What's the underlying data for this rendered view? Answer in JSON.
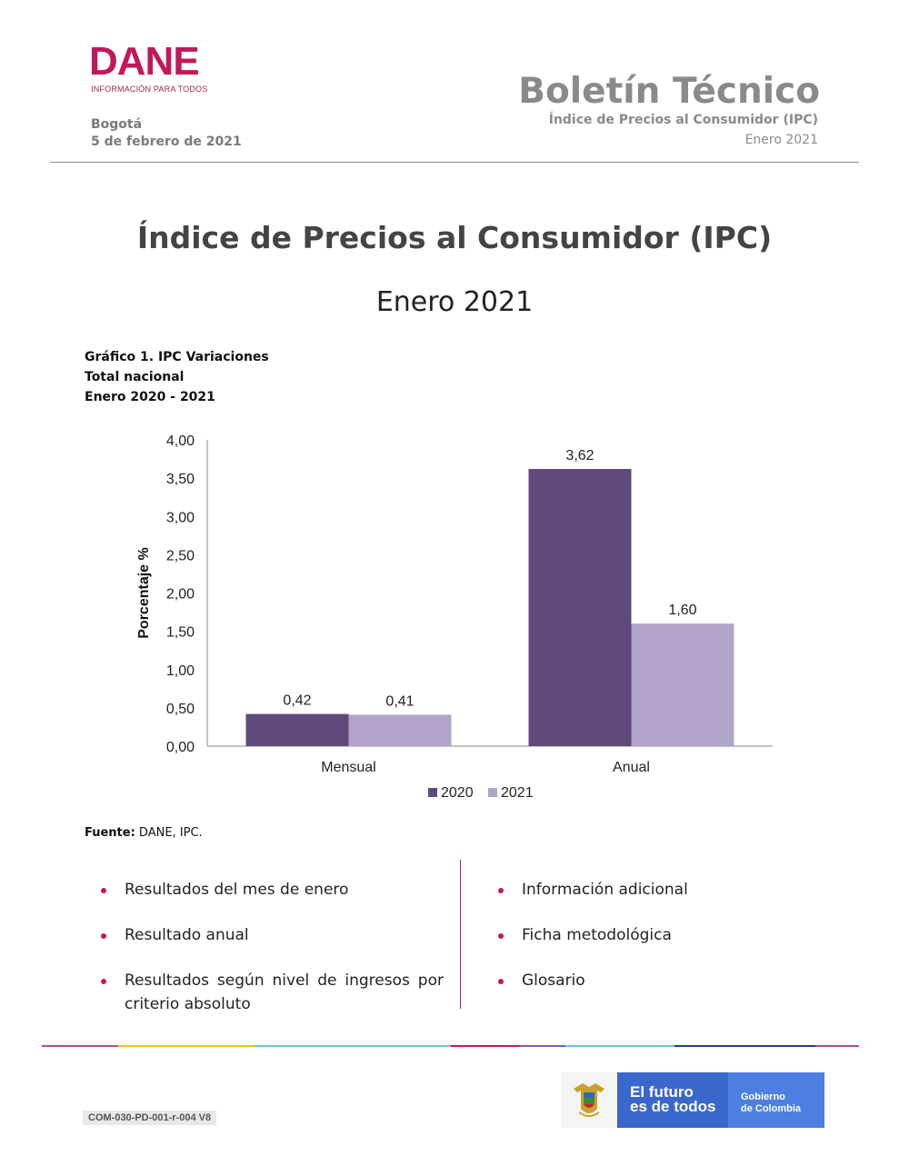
{
  "header": {
    "logo_text": "DANE",
    "logo_tagline": "INFORMACIÓN PARA TODOS",
    "city": "Bogotá",
    "date": "5 de febrero de 2021",
    "bulletin_title": "Boletín Técnico",
    "bulletin_subtitle": "Índice de Precios al Consumidor (IPC)",
    "bulletin_period": "Enero 2021"
  },
  "main": {
    "title": "Índice de Precios al Consumidor (IPC)",
    "period": "Enero 2021"
  },
  "chart_caption": {
    "line1": "Gráfico 1. IPC Variaciones",
    "line2": "Total nacional",
    "line3": "Enero 2020 - 2021"
  },
  "chart_data": {
    "type": "bar",
    "categories": [
      "Mensual",
      "Anual"
    ],
    "series": [
      {
        "name": "2020",
        "values": [
          0.42,
          3.62
        ],
        "labels": [
          "0,42",
          "3,62"
        ],
        "color": "#5f4a7b"
      },
      {
        "name": "2021",
        "values": [
          0.41,
          1.6
        ],
        "labels": [
          "0,41",
          "1,60"
        ],
        "color": "#b2a3c9"
      }
    ],
    "ylabel": "Porcentaje %",
    "ylim": [
      0,
      4
    ],
    "yticks": [
      0,
      0.5,
      1,
      1.5,
      2,
      2.5,
      3,
      3.5,
      4
    ],
    "ytick_labels": [
      "0,00",
      "0,50",
      "1,00",
      "1,50",
      "2,00",
      "2,50",
      "3,00",
      "3,50",
      "4,00"
    ],
    "legend": "bottom",
    "grid": false
  },
  "source": {
    "label": "Fuente:",
    "text": " DANE, IPC."
  },
  "contents": {
    "left": [
      "Resultados del mes de enero",
      "Resultado anual",
      "Resultados según nivel de ingresos por criterio absoluto"
    ],
    "right": [
      "Información adicional",
      "Ficha metodológica",
      "Glosario"
    ]
  },
  "footer": {
    "doc_code": "COM-030-PD-001-r-004 V8",
    "slogan_line1": "El futuro",
    "slogan_line2": "es de todos",
    "gov_line1": "Gobierno",
    "gov_line2": "de Colombia"
  },
  "colors": {
    "brand": "#c2185b",
    "strip": [
      "#b64a9e",
      "#f2c500",
      "#65c4d9",
      "#c2185b",
      "#7a5cc0",
      "#65c4d9",
      "#1f3f8f",
      "#b64a9e"
    ]
  }
}
